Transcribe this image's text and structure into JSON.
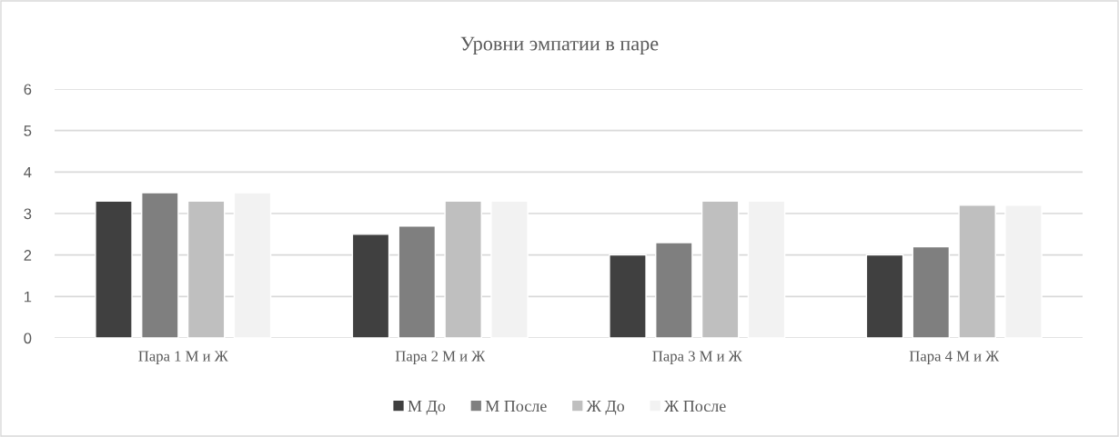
{
  "chart_data": {
    "type": "bar",
    "title": "Уровни эмпатии в паре",
    "categories": [
      "Пара 1 М и Ж",
      "Пара 2 М и Ж",
      "Пара 3 М и Ж",
      "Пара 4 М и Ж"
    ],
    "series": [
      {
        "name": "М До",
        "color": "#404040",
        "values": [
          3.3,
          2.5,
          2.0,
          2.0
        ]
      },
      {
        "name": "М После",
        "color": "#7f7f7f",
        "values": [
          3.5,
          2.7,
          2.3,
          2.2
        ]
      },
      {
        "name": "Ж До",
        "color": "#bfbfbf",
        "values": [
          3.3,
          3.3,
          3.3,
          3.2
        ]
      },
      {
        "name": "Ж После",
        "color": "#f2f2f2",
        "values": [
          3.5,
          3.3,
          3.3,
          3.2
        ]
      }
    ],
    "ylim": [
      0,
      6
    ],
    "yticks": [
      0,
      1,
      2,
      3,
      4,
      5,
      6
    ],
    "grid": "y",
    "legend": "bottom"
  }
}
